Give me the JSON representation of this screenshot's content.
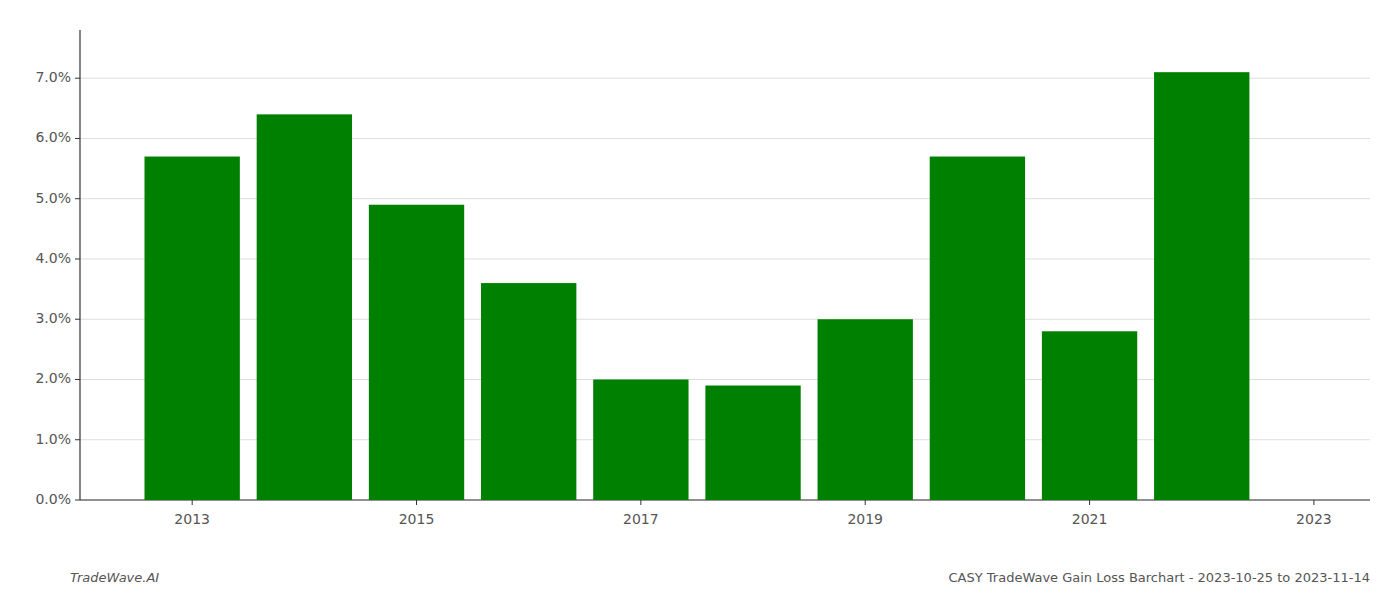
{
  "chart_data": {
    "type": "bar",
    "title": "CASY TradeWave Gain Loss Barchart - 2023-10-25 to 2023-11-14",
    "annotations": [
      "TradeWave.AI"
    ],
    "x": [
      2013,
      2014,
      2015,
      2016,
      2017,
      2018,
      2019,
      2020,
      2021,
      2022
    ],
    "values": [
      0.057,
      0.064,
      0.049,
      0.036,
      0.02,
      0.019,
      0.03,
      0.057,
      0.028,
      0.071
    ],
    "color": "#008000",
    "xlim": [
      2012.0,
      2023.5
    ],
    "xticks": [
      2013,
      2015,
      2017,
      2019,
      2021,
      2023
    ],
    "ylim": [
      0,
      0.078
    ],
    "yticks": [
      {
        "value": 0.0,
        "label": "0.0%"
      },
      {
        "value": 0.01,
        "label": "1.0%"
      },
      {
        "value": 0.02,
        "label": "2.0%"
      },
      {
        "value": 0.03,
        "label": "3.0%"
      },
      {
        "value": 0.04,
        "label": "4.0%"
      },
      {
        "value": 0.05,
        "label": "5.0%"
      },
      {
        "value": 0.06,
        "label": "6.0%"
      },
      {
        "value": 0.07,
        "label": "7.0%"
      }
    ],
    "grid": true
  }
}
